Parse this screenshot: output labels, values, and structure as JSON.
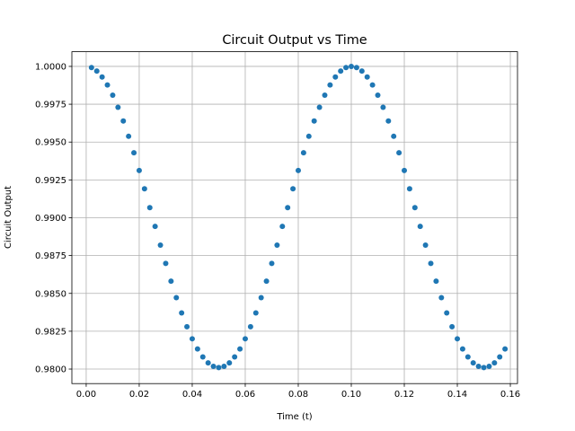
{
  "chart_data": {
    "type": "scatter",
    "title": "Circuit Output vs Time",
    "x_label": "Time (t)",
    "y_label": "Circuit Output",
    "series": [
      {
        "color": "#1f77b4",
        "x": [
          0.002,
          0.004,
          0.006,
          0.008,
          0.01,
          0.012,
          0.014,
          0.016,
          0.018,
          0.02,
          0.022,
          0.024,
          0.026,
          0.028,
          0.03,
          0.032,
          0.034,
          0.036,
          0.038,
          0.04,
          0.042,
          0.044,
          0.046,
          0.048,
          0.05,
          0.052,
          0.054,
          0.056,
          0.058,
          0.06,
          0.062,
          0.064,
          0.066,
          0.068,
          0.07,
          0.072,
          0.074,
          0.076,
          0.078,
          0.08,
          0.082,
          0.084,
          0.086,
          0.088,
          0.09,
          0.092,
          0.094,
          0.096,
          0.098,
          0.1,
          0.102,
          0.104,
          0.106,
          0.108,
          0.11,
          0.112,
          0.114,
          0.116,
          0.118,
          0.12,
          0.122,
          0.124,
          0.126,
          0.128,
          0.13,
          0.132,
          0.134,
          0.136,
          0.138,
          0.14,
          0.142,
          0.144,
          0.146,
          0.148,
          0.15,
          0.152,
          0.154,
          0.156,
          0.158
        ],
        "values": [
          0.99992,
          0.99969,
          0.9993,
          0.99877,
          0.9981,
          0.9973,
          0.99639,
          0.99538,
          0.99429,
          0.99312,
          0.99191,
          0.99067,
          0.98943,
          0.98819,
          0.98698,
          0.98581,
          0.98472,
          0.98371,
          0.9828,
          0.982,
          0.98133,
          0.9808,
          0.98041,
          0.98018,
          0.9801,
          0.98018,
          0.98041,
          0.9808,
          0.98133,
          0.982,
          0.9828,
          0.98371,
          0.98472,
          0.98581,
          0.98698,
          0.98819,
          0.98943,
          0.99067,
          0.99191,
          0.99312,
          0.99429,
          0.99538,
          0.99639,
          0.9973,
          0.9981,
          0.99877,
          0.9993,
          0.99969,
          0.99992,
          1.0,
          0.99992,
          0.99969,
          0.9993,
          0.99877,
          0.9981,
          0.9973,
          0.99639,
          0.99538,
          0.99429,
          0.99312,
          0.99191,
          0.99067,
          0.98943,
          0.98819,
          0.98698,
          0.98581,
          0.98472,
          0.98371,
          0.9828,
          0.982,
          0.98133,
          0.9808,
          0.98041,
          0.98018,
          0.9801,
          0.98018,
          0.98041,
          0.9808,
          0.98133
        ]
      }
    ],
    "xlim": [
      -0.0054,
      0.1627
    ],
    "ylim": [
      0.97904,
      1.00097
    ],
    "xticks": [
      {
        "value": 0,
        "label": "0.00"
      },
      {
        "value": 0.02,
        "label": "0.02"
      },
      {
        "value": 0.04,
        "label": "0.04"
      },
      {
        "value": 0.06,
        "label": "0.06"
      },
      {
        "value": 0.08,
        "label": "0.08"
      },
      {
        "value": 0.1,
        "label": "0.10"
      },
      {
        "value": 0.12,
        "label": "0.12"
      },
      {
        "value": 0.14,
        "label": "0.14"
      },
      {
        "value": 0.16,
        "label": "0.16"
      }
    ],
    "yticks": [
      {
        "value": 0.98,
        "label": "0.9800"
      },
      {
        "value": 0.9825,
        "label": "0.9825"
      },
      {
        "value": 0.985,
        "label": "0.9850"
      },
      {
        "value": 0.9875,
        "label": "0.9875"
      },
      {
        "value": 0.99,
        "label": "0.9900"
      },
      {
        "value": 0.9925,
        "label": "0.9925"
      },
      {
        "value": 0.995,
        "label": "0.9950"
      },
      {
        "value": 0.9975,
        "label": "0.9975"
      },
      {
        "value": 1,
        "label": "1.0000"
      }
    ],
    "grid": true
  }
}
